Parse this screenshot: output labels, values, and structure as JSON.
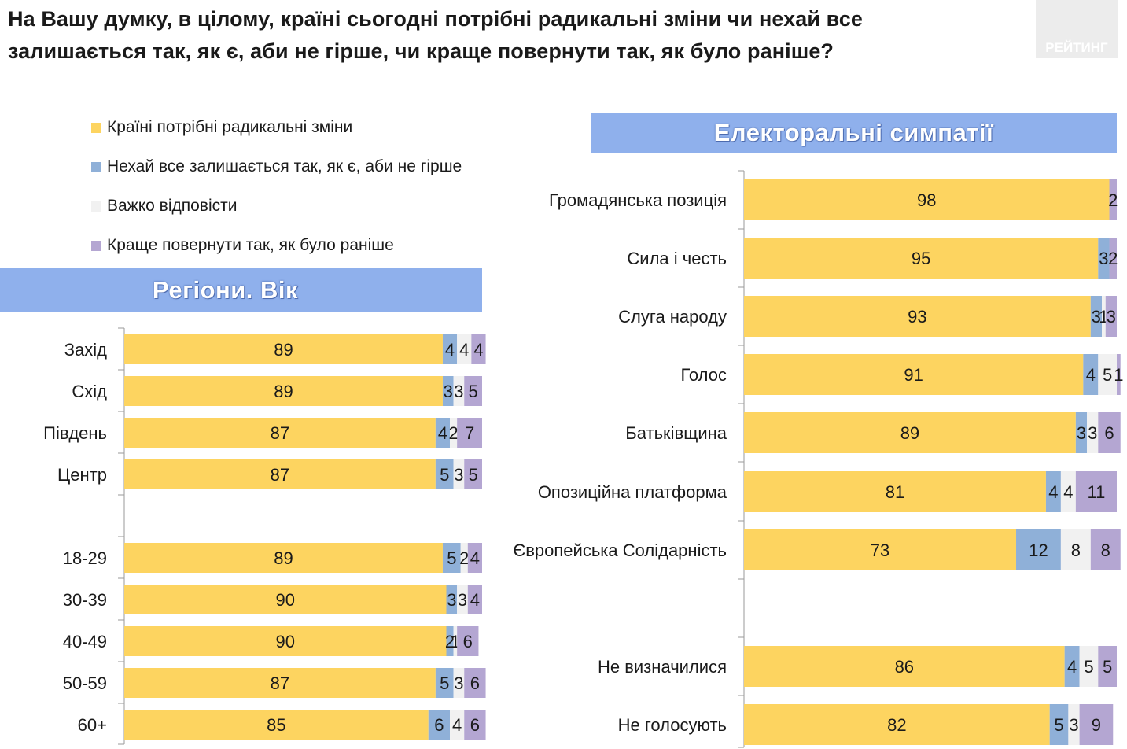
{
  "title": {
    "line1": "На Вашу думку, в цілому, країні сьогодні потрібні радикальні зміни чи нехай все",
    "line2": "залишається так, як є, аби не гірше, чи краще повернути так, як було раніше?"
  },
  "logo": {
    "text": "РЕЙТИНГ"
  },
  "legend": [
    {
      "label": "Країні потрібні радикальні зміни",
      "color": "#fdd460"
    },
    {
      "label": "Нехай все залишається так, як є, аби не гірше",
      "color": "#8fb0d8"
    },
    {
      "label": "Важко відповісти",
      "color": "#f1f1f1"
    },
    {
      "label": "Краще повернути так, як було раніше",
      "color": "#b4a6d2"
    }
  ],
  "banners": {
    "left": "Регіони. Вік",
    "right": "Електоральні симпатії"
  },
  "chart_data": [
    {
      "type": "bar",
      "orientation": "horizontal",
      "stacked": true,
      "percent_stacked": true,
      "title": "Регіони. Вік",
      "categories": [
        "Захід",
        "Схід",
        "Південь",
        "Центр",
        "18-29",
        "30-39",
        "40-49",
        "50-59",
        "60+"
      ],
      "series": [
        {
          "name": "Країні потрібні радикальні зміни",
          "values": [
            89,
            89,
            87,
            87,
            89,
            90,
            90,
            87,
            85
          ]
        },
        {
          "name": "Нехай все залишається так, як є, аби не гірше",
          "values": [
            4,
            3,
            4,
            5,
            5,
            3,
            2,
            5,
            6
          ]
        },
        {
          "name": "Важко відповісти",
          "values": [
            4,
            3,
            2,
            3,
            2,
            3,
            1,
            3,
            4
          ]
        },
        {
          "name": "Краще повернути так, як було раніше",
          "values": [
            4,
            5,
            7,
            5,
            4,
            4,
            6,
            6,
            6
          ]
        }
      ]
    },
    {
      "type": "bar",
      "orientation": "horizontal",
      "stacked": true,
      "percent_stacked": true,
      "title": "Електоральні симпатії",
      "categories": [
        "Громадянська позиція",
        "Сила і честь",
        "Слуга народу",
        "Голос",
        "Батьківщина",
        "Опозиційна платформа",
        "Європейська Солідарність",
        "Не визначилися",
        "Не голосують"
      ],
      "series": [
        {
          "name": "Країні потрібні радикальні зміни",
          "values": [
            98,
            95,
            93,
            91,
            89,
            81,
            73,
            86,
            82
          ]
        },
        {
          "name": "Нехай все залишається так, як є, аби не гірше",
          "values": [
            0,
            3,
            3,
            4,
            3,
            4,
            12,
            4,
            5
          ]
        },
        {
          "name": "Важко відповісти",
          "values": [
            0,
            0,
            1,
            5,
            3,
            4,
            8,
            5,
            3
          ]
        },
        {
          "name": "Краще повернути так, як було раніше",
          "values": [
            2,
            2,
            3,
            1,
            6,
            11,
            8,
            5,
            9
          ]
        }
      ]
    }
  ]
}
